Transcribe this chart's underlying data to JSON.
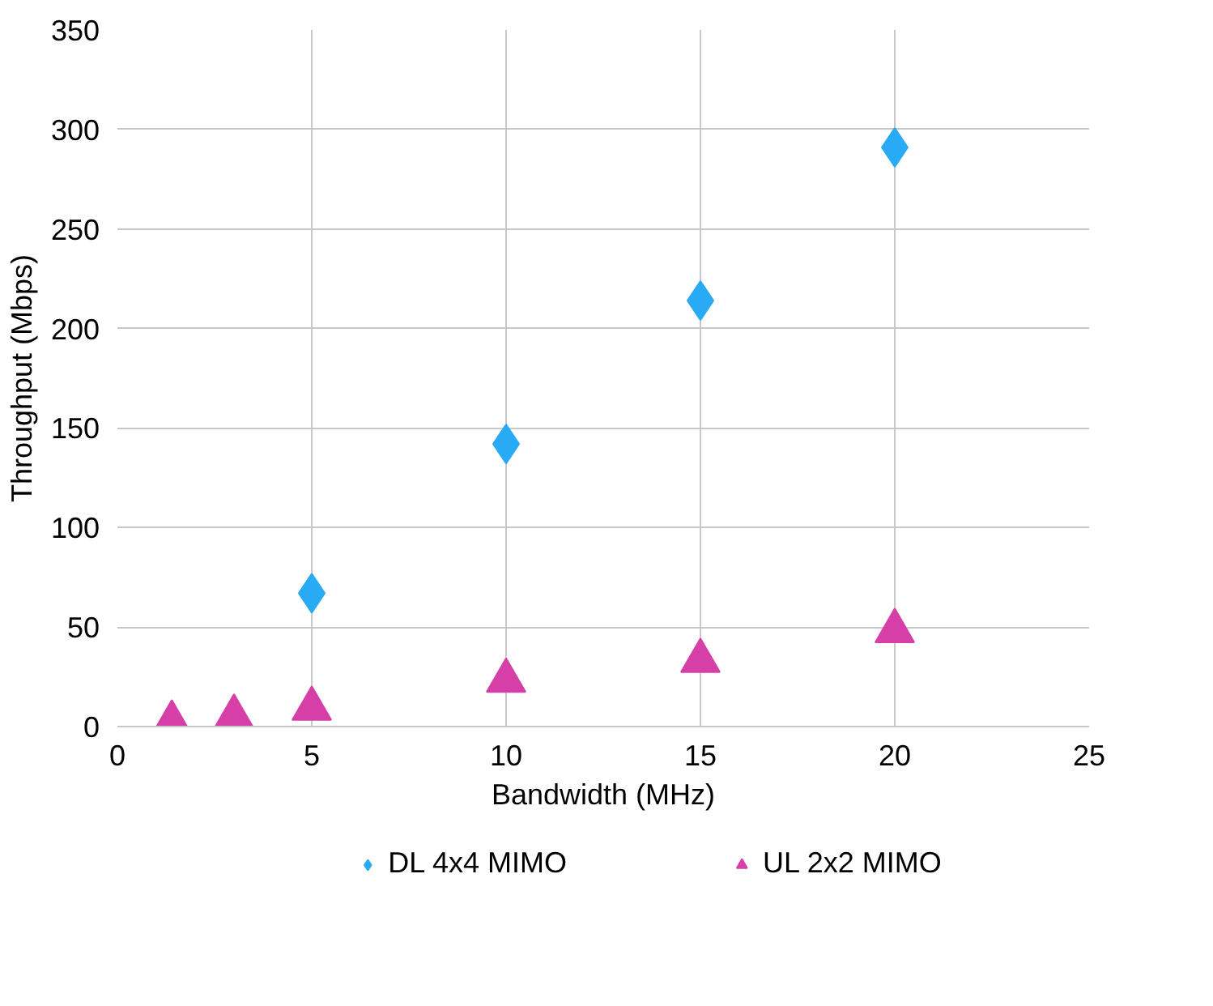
{
  "chart_data": {
    "type": "scatter",
    "xlabel": "Bandwidth (MHz)",
    "ylabel": "Throughput (Mbps)",
    "xlim": [
      0,
      25
    ],
    "xticks": [
      0,
      5,
      10,
      15,
      20,
      25
    ],
    "ylim": [
      0,
      350
    ],
    "yticks": [
      0,
      50,
      100,
      150,
      200,
      250,
      300,
      350
    ],
    "grid": true,
    "legend": "bottom",
    "series": [
      {
        "name": "DL 4x4 MIMO",
        "color": "#29aaf4",
        "marker": "diamond",
        "x": [
          5,
          10,
          15,
          20
        ],
        "values": [
          67,
          142,
          214,
          291
        ]
      },
      {
        "name": "UL 2x2 MIMO",
        "color": "#d63fa8",
        "marker": "triangle",
        "x": [
          1.4,
          3,
          5,
          10,
          15,
          20
        ],
        "values": [
          2,
          5,
          9,
          23,
          33,
          48
        ]
      }
    ]
  }
}
